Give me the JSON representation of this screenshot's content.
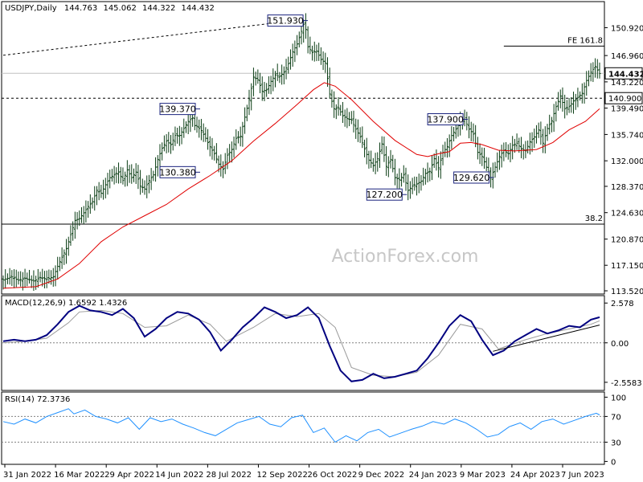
{
  "chart_data": {
    "type": "candlestick",
    "symbol_title": "USDJPY,Daily",
    "ohlc_readout": [
      "144.763",
      "145.062",
      "144.322",
      "144.432"
    ],
    "watermark": "ActionForex.com",
    "x_tick_labels": [
      "31 Jan 2022",
      "16 Mar 2022",
      "29 Apr 2022",
      "14 Jun 2022",
      "28 Jul 2022",
      "12 Sep 2022",
      "26 Oct 2022",
      "9 Dec 2022",
      "24 Jan 2023",
      "9 Mar 2023",
      "24 Apr 2023",
      "7 Jun 2023"
    ],
    "price_panel": {
      "ylim": [
        113.52,
        152.8
      ],
      "y_tick_labels": [
        "150.920",
        "146.960",
        "143.220",
        "139.490",
        "135.740",
        "132.000",
        "128.370",
        "124.630",
        "120.870",
        "117.150",
        "113.520"
      ],
      "y_tick_values": [
        150.92,
        146.96,
        143.22,
        139.49,
        135.74,
        132.0,
        128.37,
        124.63,
        120.87,
        117.15,
        113.52
      ],
      "current_price": "144.432",
      "current_price_value": 144.432,
      "level_tag": "140.900",
      "level_value": 140.9,
      "fib_extension_label": "FE 161.8",
      "fib_extension_value": 148.3,
      "fib_retracement_label": "38.2",
      "fib_retracement_value": 123.0,
      "close_path": [
        [
          0,
          115.1
        ],
        [
          8,
          115.5
        ],
        [
          14,
          115.0
        ],
        [
          20,
          115.3
        ],
        [
          28,
          114.9
        ],
        [
          34,
          115.4
        ],
        [
          40,
          115.2
        ],
        [
          46,
          115.5
        ],
        [
          50,
          117.0
        ],
        [
          54,
          118.3
        ],
        [
          58,
          119.5
        ],
        [
          62,
          121.5
        ],
        [
          66,
          123.5
        ],
        [
          70,
          123.8
        ],
        [
          74,
          124.6
        ],
        [
          78,
          125.5
        ],
        [
          82,
          126.2
        ],
        [
          86,
          127.8
        ],
        [
          90,
          127.4
        ],
        [
          94,
          128.6
        ],
        [
          98,
          129.6
        ],
        [
          102,
          130.0
        ],
        [
          106,
          130.4
        ],
        [
          110,
          129.2
        ],
        [
          114,
          130.7
        ],
        [
          118,
          129.6
        ],
        [
          122,
          130.4
        ],
        [
          126,
          128.4
        ],
        [
          130,
          128.0
        ],
        [
          134,
          129.2
        ],
        [
          138,
          130.0
        ],
        [
          142,
          132.2
        ],
        [
          146,
          133.8
        ],
        [
          150,
          134.8
        ],
        [
          154,
          134.3
        ],
        [
          158,
          135.6
        ],
        [
          162,
          135.6
        ],
        [
          166,
          136.6
        ],
        [
          170,
          137.6
        ],
        [
          174,
          138.1
        ],
        [
          176,
          137.0
        ],
        [
          178,
          136.9
        ],
        [
          182,
          136.3
        ],
        [
          186,
          135.2
        ],
        [
          190,
          134.0
        ],
        [
          194,
          133.0
        ],
        [
          198,
          131.5
        ],
        [
          202,
          130.8
        ],
        [
          206,
          132.8
        ],
        [
          210,
          133.6
        ],
        [
          214,
          135.2
        ],
        [
          218,
          135.5
        ],
        [
          222,
          138.2
        ],
        [
          226,
          140.7
        ],
        [
          230,
          143.9
        ],
        [
          234,
          143.5
        ],
        [
          238,
          141.9
        ],
        [
          242,
          142.1
        ],
        [
          246,
          143.3
        ],
        [
          250,
          144.2
        ],
        [
          254,
          144.0
        ],
        [
          258,
          144.6
        ],
        [
          262,
          145.8
        ],
        [
          266,
          147.5
        ],
        [
          270,
          148.6
        ],
        [
          274,
          150.4
        ],
        [
          277,
          151.9
        ],
        [
          280,
          148.2
        ],
        [
          284,
          147.4
        ],
        [
          288,
          147.6
        ],
        [
          292,
          146.4
        ],
        [
          296,
          145.9
        ],
        [
          300,
          141.5
        ],
        [
          304,
          139.4
        ],
        [
          308,
          139.5
        ],
        [
          312,
          138.4
        ],
        [
          316,
          138.0
        ],
        [
          320,
          137.8
        ],
        [
          324,
          136.5
        ],
        [
          328,
          135.4
        ],
        [
          332,
          133.7
        ],
        [
          336,
          132.1
        ],
        [
          340,
          131.3
        ],
        [
          344,
          132.3
        ],
        [
          348,
          134.4
        ],
        [
          352,
          131.2
        ],
        [
          356,
          132.2
        ],
        [
          360,
          129.6
        ],
        [
          364,
          129.3
        ],
        [
          368,
          130.0
        ],
        [
          372,
          127.8
        ],
        [
          376,
          128.4
        ],
        [
          380,
          128.7
        ],
        [
          384,
          129.1
        ],
        [
          388,
          130.2
        ],
        [
          392,
          130.5
        ],
        [
          396,
          132.3
        ],
        [
          400,
          131.0
        ],
        [
          404,
          133.2
        ],
        [
          408,
          134.0
        ],
        [
          412,
          135.6
        ],
        [
          416,
          136.5
        ],
        [
          420,
          137.6
        ],
        [
          424,
          137.9
        ],
        [
          428,
          136.5
        ],
        [
          432,
          135.8
        ],
        [
          436,
          133.2
        ],
        [
          440,
          132.6
        ],
        [
          444,
          131.1
        ],
        [
          448,
          129.6
        ],
        [
          452,
          131.1
        ],
        [
          456,
          132.6
        ],
        [
          460,
          133.5
        ],
        [
          464,
          133.0
        ],
        [
          468,
          134.2
        ],
        [
          472,
          134.5
        ],
        [
          476,
          133.7
        ],
        [
          480,
          133.4
        ],
        [
          484,
          134.7
        ],
        [
          488,
          135.4
        ],
        [
          492,
          136.4
        ],
        [
          496,
          134.5
        ],
        [
          500,
          136.6
        ],
        [
          504,
          137.7
        ],
        [
          508,
          139.7
        ],
        [
          512,
          141.2
        ],
        [
          516,
          139.4
        ],
        [
          520,
          139.7
        ],
        [
          524,
          140.5
        ],
        [
          528,
          141.0
        ],
        [
          532,
          141.6
        ],
        [
          536,
          143.4
        ],
        [
          540,
          144.6
        ],
        [
          544,
          145.4
        ],
        [
          548,
          144.4
        ]
      ],
      "ma_path": [
        [
          0,
          113.9
        ],
        [
          30,
          114.1
        ],
        [
          50,
          115.2
        ],
        [
          70,
          117.4
        ],
        [
          90,
          120.5
        ],
        [
          110,
          122.6
        ],
        [
          130,
          124.2
        ],
        [
          150,
          125.8
        ],
        [
          170,
          128.0
        ],
        [
          190,
          129.9
        ],
        [
          210,
          132.0
        ],
        [
          230,
          134.8
        ],
        [
          250,
          137.3
        ],
        [
          270,
          140.0
        ],
        [
          285,
          142.1
        ],
        [
          295,
          143.1
        ],
        [
          305,
          142.6
        ],
        [
          320,
          140.7
        ],
        [
          340,
          137.6
        ],
        [
          360,
          134.9
        ],
        [
          380,
          132.9
        ],
        [
          390,
          132.6
        ],
        [
          400,
          133.0
        ],
        [
          410,
          133.3
        ],
        [
          420,
          134.5
        ],
        [
          430,
          134.6
        ],
        [
          440,
          134.3
        ],
        [
          455,
          133.5
        ],
        [
          470,
          133.4
        ],
        [
          490,
          133.6
        ],
        [
          505,
          134.6
        ],
        [
          520,
          136.4
        ],
        [
          535,
          137.6
        ],
        [
          548,
          139.4
        ]
      ],
      "labels": [
        {
          "text": "151.930",
          "x": 277,
          "y": 151.93,
          "align": "right"
        },
        {
          "text": "139.370",
          "x": 178,
          "y": 139.37,
          "align": "right"
        },
        {
          "text": "130.380",
          "x": 178,
          "y": 130.38,
          "align": "right"
        },
        {
          "text": "137.900",
          "x": 424,
          "y": 137.9,
          "align": "right"
        },
        {
          "text": "127.200",
          "x": 368,
          "y": 127.2,
          "align": "right"
        },
        {
          "text": "129.620",
          "x": 448,
          "y": 129.62,
          "align": "right"
        }
      ],
      "trendline": [
        [
          0,
          147.0
        ],
        [
          277,
          152.1
        ]
      ]
    },
    "macd_panel": {
      "title": "MACD(12,26,9) 1.6592 1.4326",
      "ylim": [
        -2.98,
        2.85
      ],
      "y_tick_labels": [
        "2.578",
        "0.00",
        "-2.5583"
      ],
      "y_tick_values": [
        2.578,
        0.0,
        -2.5583
      ],
      "macd_path": [
        [
          0,
          0.1
        ],
        [
          10,
          0.2
        ],
        [
          20,
          0.1
        ],
        [
          30,
          0.2
        ],
        [
          40,
          0.5
        ],
        [
          50,
          1.2
        ],
        [
          60,
          2.0
        ],
        [
          70,
          2.4
        ],
        [
          80,
          2.1
        ],
        [
          90,
          2.0
        ],
        [
          100,
          1.8
        ],
        [
          110,
          2.2
        ],
        [
          120,
          1.6
        ],
        [
          130,
          0.4
        ],
        [
          140,
          0.9
        ],
        [
          150,
          1.6
        ],
        [
          160,
          2.0
        ],
        [
          170,
          1.9
        ],
        [
          180,
          1.5
        ],
        [
          190,
          0.7
        ],
        [
          200,
          -0.5
        ],
        [
          210,
          0.2
        ],
        [
          220,
          1.0
        ],
        [
          230,
          1.6
        ],
        [
          240,
          2.3
        ],
        [
          250,
          2.0
        ],
        [
          260,
          1.6
        ],
        [
          270,
          1.8
        ],
        [
          280,
          2.3
        ],
        [
          290,
          1.6
        ],
        [
          300,
          -0.2
        ],
        [
          310,
          -1.8
        ],
        [
          320,
          -2.5
        ],
        [
          330,
          -2.4
        ],
        [
          340,
          -2.0
        ],
        [
          350,
          -2.3
        ],
        [
          360,
          -2.2
        ],
        [
          370,
          -2.0
        ],
        [
          380,
          -1.8
        ],
        [
          390,
          -1.0
        ],
        [
          400,
          0.0
        ],
        [
          410,
          1.1
        ],
        [
          420,
          1.8
        ],
        [
          430,
          1.4
        ],
        [
          440,
          0.2
        ],
        [
          450,
          -0.8
        ],
        [
          460,
          -0.5
        ],
        [
          470,
          0.1
        ],
        [
          480,
          0.5
        ],
        [
          490,
          0.9
        ],
        [
          500,
          0.6
        ],
        [
          510,
          0.8
        ],
        [
          520,
          1.1
        ],
        [
          530,
          1.0
        ],
        [
          540,
          1.5
        ],
        [
          548,
          1.66
        ]
      ],
      "signal_path": [
        [
          0,
          0.0
        ],
        [
          20,
          0.1
        ],
        [
          40,
          0.3
        ],
        [
          60,
          1.3
        ],
        [
          70,
          2.0
        ],
        [
          90,
          2.1
        ],
        [
          110,
          1.9
        ],
        [
          130,
          1.0
        ],
        [
          150,
          1.1
        ],
        [
          170,
          1.8
        ],
        [
          190,
          1.2
        ],
        [
          205,
          0.1
        ],
        [
          230,
          1.0
        ],
        [
          250,
          1.9
        ],
        [
          270,
          1.7
        ],
        [
          290,
          1.9
        ],
        [
          305,
          1.0
        ],
        [
          320,
          -1.6
        ],
        [
          340,
          -2.1
        ],
        [
          360,
          -2.2
        ],
        [
          380,
          -1.9
        ],
        [
          400,
          -0.8
        ],
        [
          420,
          1.2
        ],
        [
          440,
          0.9
        ],
        [
          455,
          -0.4
        ],
        [
          480,
          0.2
        ],
        [
          500,
          0.6
        ],
        [
          520,
          0.9
        ],
        [
          540,
          1.2
        ],
        [
          548,
          1.43
        ]
      ],
      "trendline": [
        [
          450,
          -0.55
        ],
        [
          548,
          1.15
        ]
      ]
    },
    "rsi_panel": {
      "title": "RSI(14) 72.3736",
      "ylim": [
        -2,
        103
      ],
      "y_tick_labels": [
        "100",
        "70",
        "30",
        "0"
      ],
      "y_tick_values": [
        100,
        70,
        30,
        0
      ],
      "rsi_path": [
        [
          0,
          62
        ],
        [
          10,
          58
        ],
        [
          20,
          66
        ],
        [
          30,
          60
        ],
        [
          40,
          70
        ],
        [
          50,
          76
        ],
        [
          60,
          82
        ],
        [
          65,
          74
        ],
        [
          75,
          80
        ],
        [
          85,
          70
        ],
        [
          95,
          66
        ],
        [
          105,
          60
        ],
        [
          115,
          68
        ],
        [
          125,
          50
        ],
        [
          135,
          68
        ],
        [
          145,
          62
        ],
        [
          155,
          66
        ],
        [
          165,
          58
        ],
        [
          175,
          52
        ],
        [
          185,
          45
        ],
        [
          195,
          40
        ],
        [
          205,
          50
        ],
        [
          215,
          60
        ],
        [
          225,
          65
        ],
        [
          235,
          70
        ],
        [
          245,
          58
        ],
        [
          255,
          54
        ],
        [
          265,
          68
        ],
        [
          275,
          72
        ],
        [
          285,
          45
        ],
        [
          295,
          52
        ],
        [
          305,
          30
        ],
        [
          315,
          40
        ],
        [
          325,
          32
        ],
        [
          335,
          45
        ],
        [
          345,
          50
        ],
        [
          355,
          38
        ],
        [
          365,
          44
        ],
        [
          375,
          50
        ],
        [
          385,
          55
        ],
        [
          395,
          62
        ],
        [
          405,
          58
        ],
        [
          415,
          66
        ],
        [
          425,
          60
        ],
        [
          435,
          50
        ],
        [
          445,
          38
        ],
        [
          455,
          42
        ],
        [
          465,
          54
        ],
        [
          475,
          60
        ],
        [
          485,
          50
        ],
        [
          495,
          62
        ],
        [
          505,
          66
        ],
        [
          515,
          58
        ],
        [
          525,
          64
        ],
        [
          535,
          70
        ],
        [
          545,
          75
        ],
        [
          548,
          72.37
        ]
      ]
    }
  }
}
